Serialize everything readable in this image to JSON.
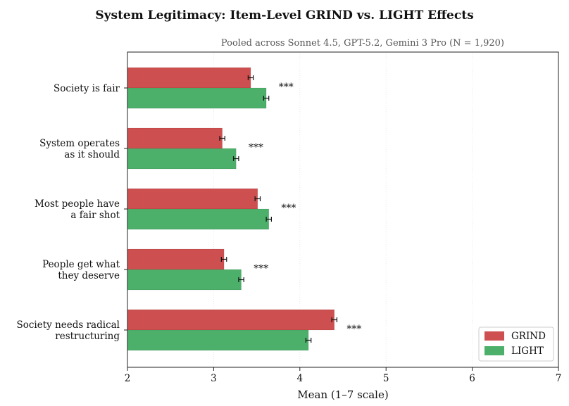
{
  "chart_data": {
    "type": "bar",
    "orientation": "horizontal",
    "title": "System Legitimacy: Item-Level GRIND vs. LIGHT Effects",
    "subtitle": "Pooled across Sonnet 4.5, GPT-5.2, Gemini 3 Pro  (N = 1,920)",
    "xlabel": "Mean (1–7 scale)",
    "ylabel": "",
    "xlim": [
      2,
      7
    ],
    "xticks": [
      2,
      3,
      4,
      5,
      6,
      7
    ],
    "grid": "x-dotted",
    "legend_position": "bottom-right",
    "categories": [
      [
        "Society is fair"
      ],
      [
        "System operates",
        "as it should"
      ],
      [
        "Most people have",
        "a fair shot"
      ],
      [
        "People get what",
        "they deserve"
      ],
      [
        "Society needs radical",
        "restructuring"
      ]
    ],
    "series": [
      {
        "name": "GRIND",
        "color": "#cd4f4f",
        "values": [
          3.43,
          3.1,
          3.51,
          3.12,
          4.4
        ],
        "errors": [
          0.03,
          0.03,
          0.03,
          0.03,
          0.03
        ]
      },
      {
        "name": "LIGHT",
        "color": "#4caf6a",
        "values": [
          3.61,
          3.26,
          3.64,
          3.32,
          4.1
        ],
        "errors": [
          0.03,
          0.03,
          0.03,
          0.03,
          0.03
        ]
      }
    ],
    "annotations": [
      "***",
      "***",
      "***",
      "***",
      "***"
    ]
  }
}
